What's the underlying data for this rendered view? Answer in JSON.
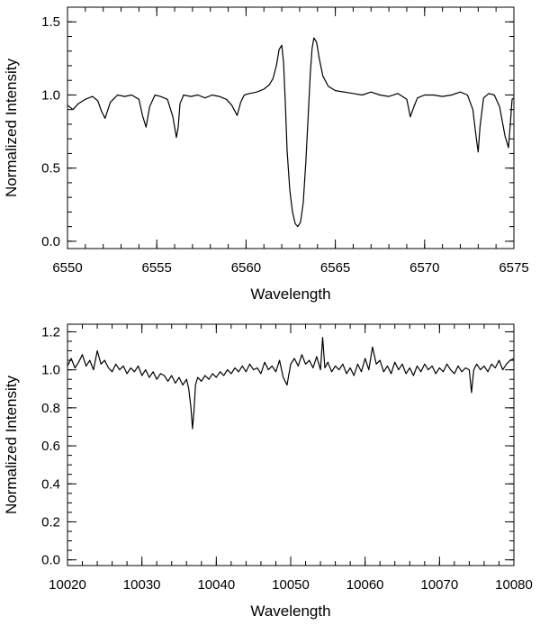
{
  "chart_data": [
    {
      "type": "line",
      "xlabel": "Wavelength",
      "ylabel": "Normalized Intensity",
      "xlim": [
        6550,
        6575
      ],
      "ylim": [
        -0.05,
        1.6
      ],
      "xticks": [
        6550,
        6555,
        6560,
        6565,
        6570,
        6575
      ],
      "xtick_labels": [
        "6550",
        "6555",
        "6560",
        "6565",
        "6570",
        "6575"
      ],
      "yticks": [
        0.0,
        0.5,
        1.0,
        1.5
      ],
      "ytick_labels": [
        "0.0",
        "0.5",
        "1.0",
        "1.5"
      ],
      "x_minor_step": 1,
      "y_minor_step": 0.1,
      "grid": false,
      "legend": "none",
      "series": [
        {
          "x": [
            6550.0,
            6550.3,
            6550.6,
            6551.0,
            6551.4,
            6551.7,
            6551.9,
            6552.1,
            6552.4,
            6552.8,
            6553.2,
            6553.6,
            6554.0,
            6554.2,
            6554.4,
            6554.6,
            6554.9,
            6555.2,
            6555.6,
            6555.9,
            6556.1,
            6556.2,
            6556.3,
            6556.5,
            6556.9,
            6557.3,
            6557.7,
            6558.1,
            6558.5,
            6558.9,
            6559.2,
            6559.5,
            6559.7,
            6559.9,
            6560.2,
            6560.6,
            6561.0,
            6561.3,
            6561.5,
            6561.7,
            6561.85,
            6562.0,
            6562.1,
            6562.2,
            6562.3,
            6562.45,
            6562.6,
            6562.75,
            6562.9,
            6563.05,
            6563.2,
            6563.35,
            6563.5,
            6563.6,
            6563.7,
            6563.8,
            6563.95,
            6564.1,
            6564.3,
            6564.6,
            6565.0,
            6565.5,
            6566.0,
            6566.5,
            6567.0,
            6567.5,
            6568.0,
            6568.5,
            6569.0,
            6569.2,
            6569.4,
            6569.6,
            6570.0,
            6570.5,
            6571.0,
            6571.5,
            6572.0,
            6572.4,
            6572.7,
            6572.9,
            6573.0,
            6573.1,
            6573.3,
            6573.6,
            6573.9,
            6574.2,
            6574.5,
            6574.7,
            6574.8,
            6574.9,
            6575.0
          ],
          "y": [
            0.93,
            0.9,
            0.94,
            0.97,
            0.99,
            0.96,
            0.89,
            0.84,
            0.95,
            1.0,
            0.99,
            1.0,
            0.97,
            0.86,
            0.78,
            0.92,
            1.0,
            0.99,
            0.97,
            0.85,
            0.71,
            0.78,
            0.94,
            1.0,
            0.99,
            1.0,
            0.98,
            1.0,
            0.99,
            0.97,
            0.93,
            0.86,
            0.95,
            1.0,
            1.01,
            1.02,
            1.04,
            1.07,
            1.11,
            1.2,
            1.31,
            1.34,
            1.22,
            0.95,
            0.62,
            0.35,
            0.2,
            0.12,
            0.1,
            0.13,
            0.26,
            0.55,
            0.9,
            1.15,
            1.32,
            1.39,
            1.36,
            1.25,
            1.13,
            1.06,
            1.03,
            1.02,
            1.01,
            1.0,
            1.02,
            1.0,
            0.99,
            1.01,
            0.97,
            0.85,
            0.92,
            0.98,
            1.0,
            1.0,
            0.99,
            1.0,
            1.02,
            1.0,
            0.9,
            0.7,
            0.61,
            0.78,
            0.98,
            1.01,
            1.0,
            0.92,
            0.72,
            0.64,
            0.8,
            0.97,
            0.98
          ]
        }
      ]
    },
    {
      "type": "line",
      "xlabel": "Wavelength",
      "ylabel": "Normalized Intensity",
      "xlim": [
        10020,
        10080
      ],
      "ylim": [
        -0.03,
        1.24
      ],
      "xticks": [
        10020,
        10030,
        10040,
        10050,
        10060,
        10070,
        10080
      ],
      "xtick_labels": [
        "10020",
        "10030",
        "10040",
        "10050",
        "10060",
        "10070",
        "10080"
      ],
      "yticks": [
        0.0,
        0.2,
        0.4,
        0.6,
        0.8,
        1.0,
        1.2
      ],
      "ytick_labels": [
        "0.0",
        "0.2",
        "0.4",
        "0.6",
        "0.8",
        "1.0",
        "1.2"
      ],
      "x_minor_step": 2,
      "y_minor_step": 0.05,
      "grid": false,
      "legend": "none",
      "series": [
        {
          "x": [
            10020.0,
            10020.5,
            10021.0,
            10021.5,
            10022.0,
            10022.5,
            10023.0,
            10023.5,
            10024.0,
            10024.5,
            10025.0,
            10025.5,
            10026.0,
            10026.5,
            10027.0,
            10027.5,
            10028.0,
            10028.5,
            10029.0,
            10029.5,
            10030.0,
            10030.5,
            10031.0,
            10031.5,
            10032.0,
            10032.5,
            10033.0,
            10033.5,
            10034.0,
            10034.5,
            10035.0,
            10035.5,
            10036.0,
            10036.3,
            10036.6,
            10036.8,
            10037.0,
            10037.2,
            10037.5,
            10038.0,
            10038.5,
            10039.0,
            10039.5,
            10040.0,
            10040.5,
            10041.0,
            10041.5,
            10042.0,
            10042.5,
            10043.0,
            10043.5,
            10044.0,
            10044.5,
            10045.0,
            10045.5,
            10046.0,
            10046.5,
            10047.0,
            10047.5,
            10048.0,
            10048.5,
            10049.0,
            10049.5,
            10050.0,
            10050.5,
            10051.0,
            10051.5,
            10052.0,
            10052.5,
            10053.0,
            10053.5,
            10054.0,
            10054.3,
            10054.6,
            10055.0,
            10055.5,
            10056.0,
            10056.5,
            10057.0,
            10057.5,
            10058.0,
            10058.5,
            10059.0,
            10059.5,
            10060.0,
            10060.5,
            10061.0,
            10061.5,
            10062.0,
            10062.5,
            10063.0,
            10063.5,
            10064.0,
            10064.5,
            10065.0,
            10065.5,
            10066.0,
            10066.5,
            10067.0,
            10067.5,
            10068.0,
            10068.5,
            10069.0,
            10069.5,
            10070.0,
            10070.5,
            10071.0,
            10071.5,
            10072.0,
            10072.5,
            10073.0,
            10073.5,
            10074.0,
            10074.3,
            10074.6,
            10075.0,
            10075.5,
            10076.0,
            10076.5,
            10077.0,
            10077.5,
            10078.0,
            10078.5,
            10079.0,
            10079.5,
            10080.0
          ],
          "y": [
            1.02,
            1.06,
            1.01,
            1.04,
            1.08,
            1.02,
            1.05,
            1.0,
            1.1,
            1.03,
            1.05,
            1.01,
            0.99,
            1.03,
            1.0,
            1.02,
            0.98,
            1.01,
            0.99,
            1.02,
            0.97,
            1.0,
            0.96,
            0.99,
            0.95,
            0.98,
            0.97,
            0.94,
            0.97,
            0.93,
            0.96,
            0.92,
            0.95,
            0.9,
            0.8,
            0.69,
            0.78,
            0.92,
            0.96,
            0.94,
            0.97,
            0.95,
            0.98,
            0.96,
            0.99,
            0.97,
            1.0,
            0.98,
            1.01,
            0.99,
            1.02,
            0.99,
            1.03,
            1.0,
            1.01,
            0.98,
            1.04,
            1.0,
            1.02,
            0.99,
            1.05,
            0.96,
            0.92,
            1.03,
            1.06,
            1.02,
            1.08,
            1.03,
            1.05,
            1.01,
            1.07,
            1.0,
            1.17,
            1.01,
            1.04,
            0.99,
            1.02,
            1.0,
            1.03,
            0.98,
            1.01,
            0.97,
            1.03,
            0.99,
            1.06,
            1.0,
            1.12,
            1.03,
            1.05,
            0.99,
            1.02,
            0.98,
            1.04,
            1.0,
            1.03,
            0.98,
            1.01,
            0.97,
            1.02,
            0.99,
            1.03,
            1.0,
            1.02,
            0.98,
            1.01,
            0.99,
            1.03,
            1.0,
            0.98,
            1.02,
            0.99,
            1.01,
            1.0,
            0.88,
            1.0,
            1.03,
            1.0,
            1.02,
            0.99,
            1.03,
            1.01,
            1.05,
            1.0,
            1.03,
            1.05,
            1.06
          ]
        }
      ]
    }
  ]
}
